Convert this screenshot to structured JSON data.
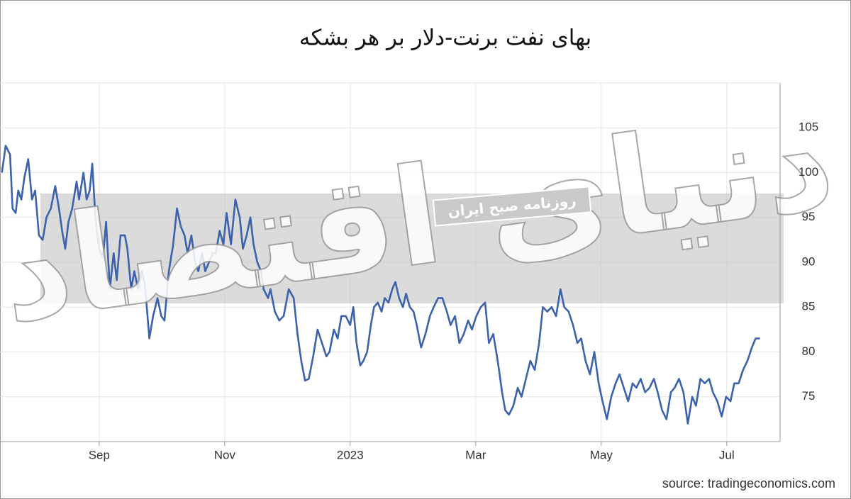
{
  "chart_data": {
    "type": "line",
    "title": "بهای نفت برنت-دلار بر هر بشکه",
    "source": "source: tradingeconomics.com",
    "watermark": "دنیای اقتصاد",
    "banner": "روزنامه صبح ایران",
    "color": "#3c62ac",
    "grid": true,
    "xlim": [
      7.42,
      19.85
    ],
    "xticks": [
      {
        "value": 9,
        "label": "Sep"
      },
      {
        "value": 11,
        "label": "Nov"
      },
      {
        "value": 13,
        "label": "2023"
      },
      {
        "value": 15,
        "label": "Mar"
      },
      {
        "value": 17,
        "label": "May"
      },
      {
        "value": 19,
        "label": "Jul"
      }
    ],
    "ylim": [
      70,
      110
    ],
    "yticks": [
      75,
      80,
      85,
      90,
      95,
      100,
      105
    ],
    "x": [
      7.45,
      7.51,
      7.58,
      7.62,
      7.67,
      7.71,
      7.76,
      7.81,
      7.87,
      7.93,
      7.98,
      8.04,
      8.1,
      8.16,
      8.23,
      8.3,
      8.36,
      8.41,
      8.46,
      8.51,
      8.57,
      8.64,
      8.68,
      8.75,
      8.8,
      8.85,
      8.89,
      8.94,
      9.0,
      9.06,
      9.11,
      9.17,
      9.23,
      9.28,
      9.34,
      9.41,
      9.45,
      9.51,
      9.56,
      9.62,
      9.68,
      9.73,
      9.8,
      9.86,
      9.93,
      9.99,
      10.04,
      10.11,
      10.18,
      10.24,
      10.3,
      10.36,
      10.41,
      10.47,
      10.53,
      10.58,
      10.64,
      10.69,
      10.75,
      10.81,
      10.86,
      10.92,
      10.98,
      11.03,
      11.1,
      11.17,
      11.24,
      11.29,
      11.35,
      11.41,
      11.46,
      11.52,
      11.58,
      11.62,
      11.69,
      11.73,
      11.8,
      11.87,
      11.94,
      12.02,
      12.1,
      12.16,
      12.22,
      12.28,
      12.34,
      12.41,
      12.48,
      12.55,
      12.62,
      12.67,
      12.74,
      12.8,
      12.86,
      12.93,
      13.0,
      13.05,
      13.1,
      13.16,
      13.21,
      13.27,
      13.33,
      13.38,
      13.44,
      13.5,
      13.55,
      13.61,
      13.67,
      13.72,
      13.78,
      13.84,
      13.89,
      13.95,
      14.01,
      14.06,
      14.13,
      14.2,
      14.27,
      14.33,
      14.4,
      14.47,
      14.54,
      14.6,
      14.67,
      14.74,
      14.81,
      14.88,
      14.94,
      15.01,
      15.08,
      15.15,
      15.21,
      15.28,
      15.35,
      15.42,
      15.47,
      15.53,
      15.6,
      15.67,
      15.73,
      15.8,
      15.87,
      15.94,
      16.01,
      16.07,
      16.14,
      16.21,
      16.28,
      16.35,
      16.41,
      16.48,
      16.55,
      16.62,
      16.68,
      16.75,
      16.82,
      16.89,
      16.96,
      17.02,
      17.09,
      17.16,
      17.23,
      17.29,
      17.36,
      17.43,
      17.5,
      17.56,
      17.63,
      17.7,
      17.77,
      17.84,
      17.9,
      17.97,
      18.04,
      18.11,
      18.17,
      18.24,
      18.31,
      18.38,
      18.45,
      18.51,
      18.58,
      18.65,
      18.72,
      18.78,
      18.85,
      18.92,
      18.99,
      19.06,
      19.12,
      19.19,
      19.26,
      19.33,
      19.4,
      19.46,
      19.53
    ],
    "values": [
      100,
      103,
      102,
      96,
      95.5,
      98,
      97,
      99.5,
      101.5,
      97,
      98,
      93,
      92.5,
      95,
      96,
      98.5,
      96,
      93.5,
      91.5,
      94.5,
      96,
      99,
      97,
      100,
      97,
      98,
      101,
      95,
      91.5,
      90.5,
      94.5,
      87,
      91,
      88,
      93,
      93,
      91.5,
      87,
      89,
      87,
      89,
      87.5,
      81.5,
      84,
      86,
      84,
      83.5,
      89,
      92,
      96,
      94,
      93,
      91,
      93,
      90,
      89,
      91,
      89,
      90,
      91,
      91,
      93.5,
      92,
      95.5,
      92,
      97,
      95,
      91.5,
      93,
      95,
      92,
      90,
      89,
      87,
      86,
      87,
      84.5,
      83.5,
      84,
      87,
      86,
      82,
      79,
      76.8,
      77,
      79.5,
      82.5,
      81,
      79.5,
      80,
      82.5,
      81.5,
      84,
      84,
      83,
      85,
      81,
      78.5,
      79,
      80,
      83,
      85,
      85.5,
      84.5,
      86,
      85.5,
      87,
      87.8,
      86,
      85,
      86.5,
      85,
      84.5,
      83,
      80.5,
      82,
      84,
      85,
      86,
      86,
      84.5,
      83,
      84,
      81,
      82,
      83.5,
      82.5,
      84,
      85,
      85.5,
      81,
      82,
      79,
      75.5,
      73.5,
      73,
      74,
      76,
      75,
      77,
      79,
      78,
      81,
      85,
      84.5,
      85,
      84,
      87,
      85,
      84.5,
      83,
      81,
      81.5,
      79,
      77.5,
      80,
      76.5,
      74.5,
      72.5,
      75,
      76.5,
      77.5,
      76,
      74.5,
      76.5,
      76,
      77,
      75.5,
      76,
      77,
      75.5,
      73.5,
      72.5,
      75.5,
      76,
      77,
      75.5,
      72,
      75,
      74,
      77,
      76.5,
      77,
      75.5,
      74.5,
      72.8,
      75,
      74.5,
      76.5,
      76.5,
      78,
      79,
      80.5,
      81.5,
      81.5
    ]
  }
}
